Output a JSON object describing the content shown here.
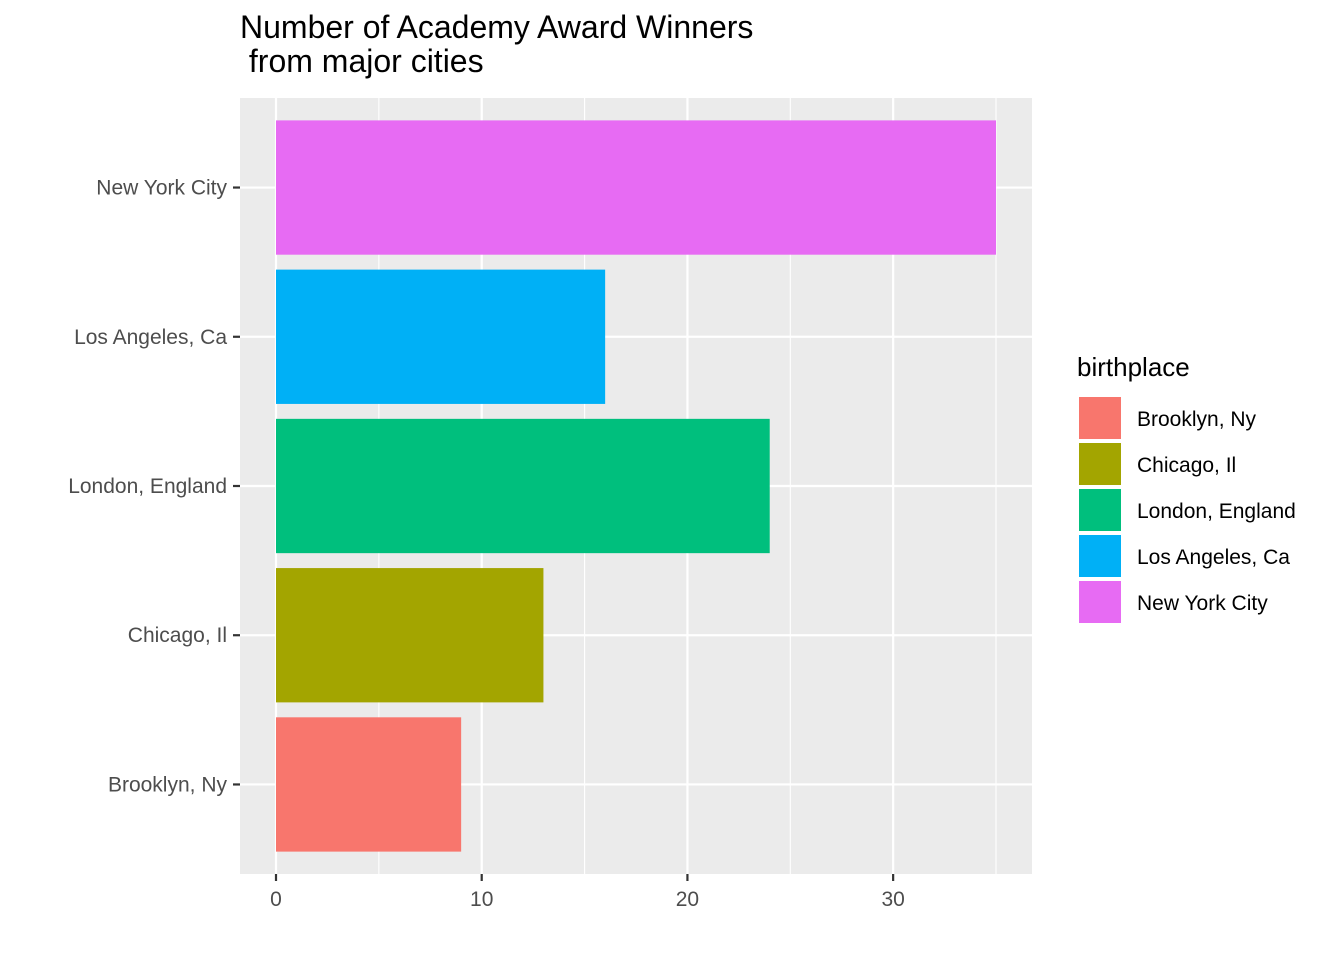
{
  "chart_data": {
    "type": "bar",
    "orientation": "horizontal",
    "title": "Number of Academy Award Winners\n from major cities",
    "categories": [
      "Brooklyn, Ny",
      "Chicago, Il",
      "London, England",
      "Los Angeles, Ca",
      "New York City"
    ],
    "values": [
      9,
      13,
      24,
      16,
      35
    ],
    "colors": [
      "#F8766D",
      "#A3A500",
      "#00BF7D",
      "#00B0F6",
      "#E76BF3"
    ],
    "x_ticks": [
      0,
      10,
      20,
      30
    ],
    "xlim": [
      -1.75,
      36.75
    ],
    "grid": true,
    "legend": {
      "title": "birthplace",
      "position": "right",
      "entries": [
        "Brooklyn, Ny",
        "Chicago, Il",
        "London, England",
        "Los Angeles, Ca",
        "New York City"
      ]
    }
  }
}
